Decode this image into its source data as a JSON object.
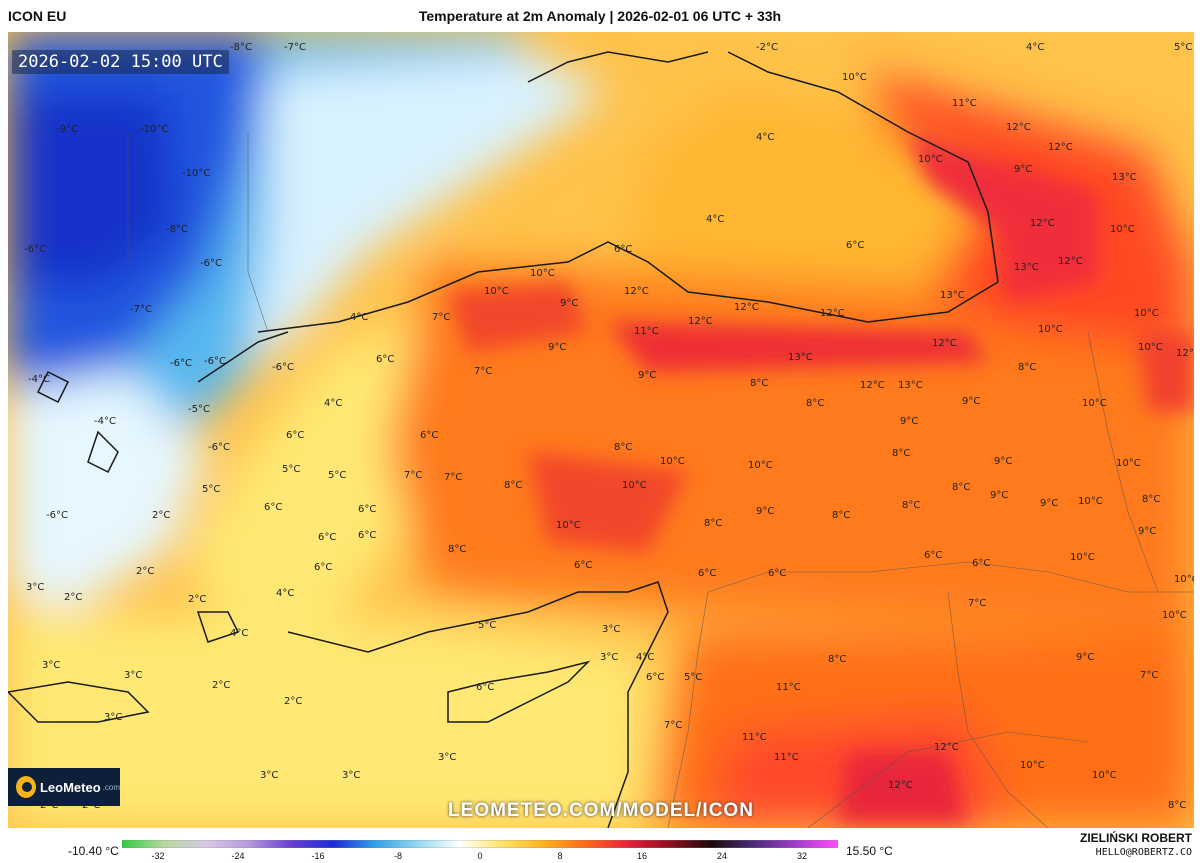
{
  "header": {
    "model": "ICON EU",
    "title": "Temperature at 2m Anomaly | 2026-02-01 06 UTC + 33h"
  },
  "map": {
    "timestamp": "2026-02-02 15:00 UTC",
    "watermark": "LEOMETEO.COM/MODEL/ICON",
    "logo": {
      "name": "LeoMeteo",
      "sub": ".com"
    },
    "labels": [
      "-8°C",
      "-7°C",
      "-6°C",
      "-6°C",
      "-6°C",
      "-2°C",
      "4°C",
      "5°C",
      "-9°C",
      "-10°C",
      "-10°C",
      "-8°C",
      "-6°C",
      "-4°C",
      "-7°C",
      "-6°C",
      "-6°C",
      "-5°C",
      "-4°C",
      "-6°C",
      "10°C",
      "11°C",
      "12°C",
      "12°C",
      "10°C",
      "9°C",
      "13°C",
      "12°C",
      "10°C",
      "12°C",
      "13°C",
      "13°C",
      "10°C",
      "10°C",
      "12°C",
      "4°C",
      "4°C",
      "6°C",
      "6°C",
      "10°C",
      "12°C",
      "10°C",
      "9°C",
      "12°C",
      "12°C",
      "12°C",
      "11°C",
      "4°C",
      "7°C",
      "6°C",
      "9°C",
      "12°C",
      "13°C",
      "10°C",
      "7°C",
      "9°C",
      "8°C",
      "12°C",
      "13°C",
      "8°C",
      "8°C",
      "9°C",
      "10°C",
      "9°C",
      "4°C",
      "6°C",
      "6°C",
      "5°C",
      "5°C",
      "7°C",
      "7°C",
      "8°C",
      "8°C",
      "10°C",
      "10°C",
      "10°C",
      "10°C",
      "8°C",
      "9°C",
      "8°C",
      "8°C",
      "9°C",
      "9°C",
      "10°C",
      "5°C",
      "6°C",
      "6°C",
      "6°C",
      "8°C",
      "10°C",
      "8°C",
      "9°C",
      "8°C",
      "8°C",
      "10°C",
      "9°C",
      "2°C",
      "6°C",
      "6°C",
      "6°C",
      "6°C",
      "6°C",
      "6°C",
      "6°C",
      "10°C",
      "3°C",
      "2°C",
      "2°C",
      "4°C",
      "5°C",
      "3°C",
      "3°C",
      "4°C",
      "6°C",
      "7°C",
      "10°C",
      "2°C",
      "4°C",
      "3°C",
      "2°C",
      "2°C",
      "6°C",
      "5°C",
      "8°C",
      "9°C",
      "11°C",
      "7°C",
      "3°C",
      "3°C",
      "7°C",
      "11°C",
      "11°C",
      "12°C",
      "10°C",
      "3°C",
      "3°C",
      "3°C",
      "12°C",
      "10°C",
      "2°C",
      "2°C",
      "8°C"
    ]
  },
  "legend": {
    "min_label": "-10.40 °C",
    "max_label": "15.50 °C",
    "ticks": [
      "-32",
      "-24",
      "-16",
      "-8",
      "0",
      "8",
      "16",
      "24",
      "32"
    ],
    "colors": [
      "#2ecc40",
      "#b7d9a0",
      "#d8c8e8",
      "#b79ae0",
      "#6a3fd1",
      "#1a2bd6",
      "#2f9fe8",
      "#8fd8f0",
      "#ffffff",
      "#ffe66b",
      "#ffb21c",
      "#ff6b1a",
      "#e8203a",
      "#8e1020",
      "#1a0a0a",
      "#4b2a7a",
      "#a03bc8",
      "#ff4dff"
    ]
  },
  "footer": {
    "author": "ZIELIŃSKI ROBERT",
    "email": "HELLO@ROBERTZ.CO"
  }
}
